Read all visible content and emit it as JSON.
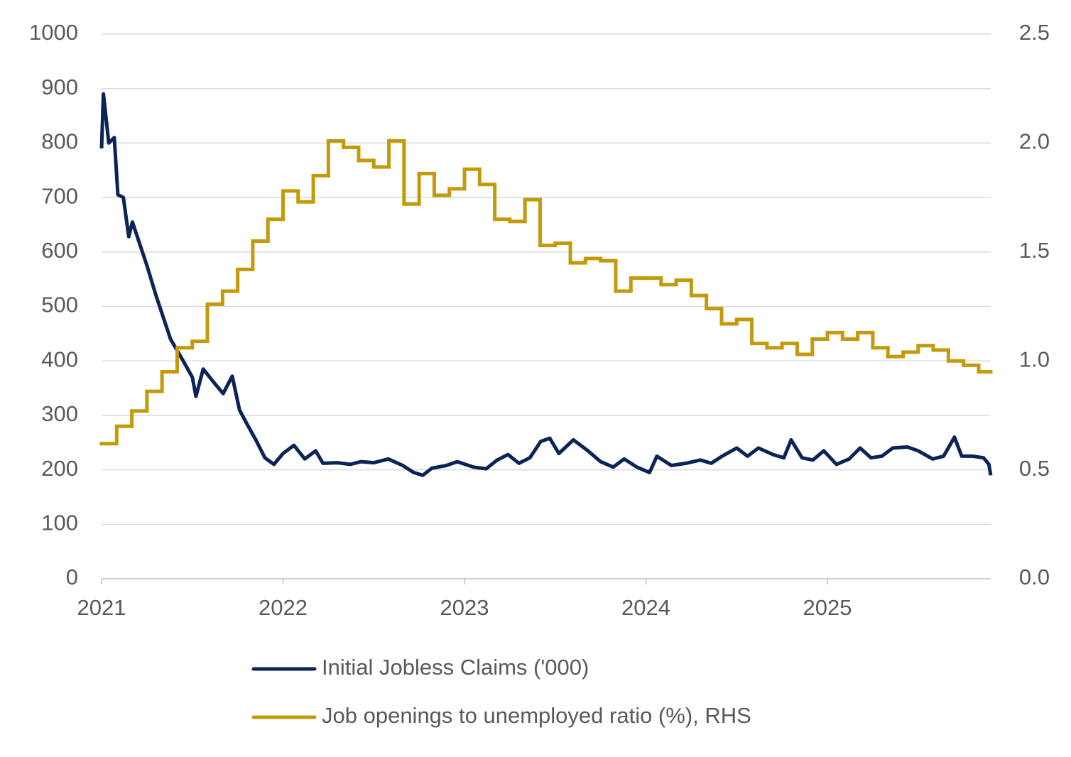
{
  "chart_data": {
    "type": "line",
    "xlim": [
      2021,
      2025.9
    ],
    "xticks": [
      2021,
      2022,
      2023,
      2024,
      2025
    ],
    "ylim": [
      0,
      1000
    ],
    "yticks": [
      0,
      100,
      200,
      300,
      400,
      500,
      600,
      700,
      800,
      900,
      1000
    ],
    "y2lim": [
      0,
      2.5
    ],
    "y2ticks": [
      {
        "value": 0,
        "label": "0.0"
      },
      0.5,
      {
        "value": 1,
        "label": "1.0"
      },
      1.5,
      {
        "value": 2,
        "label": "2.0"
      },
      2.5
    ],
    "grid": true,
    "series": [
      {
        "name": "Initial Jobless Claims ('000)",
        "color": "#0c2356",
        "axis": "y",
        "x": [
          2021.0,
          2021.01,
          2021.04,
          2021.07,
          2021.09,
          2021.12,
          2021.15,
          2021.17,
          2021.25,
          2021.3,
          2021.38,
          2021.45,
          2021.5,
          2021.52,
          2021.56,
          2021.62,
          2021.67,
          2021.72,
          2021.76,
          2021.8,
          2021.85,
          2021.9,
          2021.95,
          2022.0,
          2022.06,
          2022.12,
          2022.18,
          2022.22,
          2022.3,
          2022.37,
          2022.43,
          2022.5,
          2022.58,
          2022.66,
          2022.72,
          2022.77,
          2022.82,
          2022.9,
          2022.96,
          2023.05,
          2023.12,
          2023.18,
          2023.24,
          2023.3,
          2023.36,
          2023.42,
          2023.47,
          2023.52,
          2023.6,
          2023.68,
          2023.75,
          2023.82,
          2023.88,
          2023.95,
          2024.02,
          2024.06,
          2024.14,
          2024.22,
          2024.3,
          2024.36,
          2024.42,
          2024.5,
          2024.56,
          2024.62,
          2024.7,
          2024.76,
          2024.8,
          2024.86,
          2024.92,
          2024.98,
          2025.05,
          2025.12,
          2025.18,
          2025.24,
          2025.3,
          2025.36,
          2025.44,
          2025.5,
          2025.58,
          2025.64,
          2025.7,
          2025.74,
          2025.8,
          2025.86,
          2025.89,
          2025.9
        ],
        "values": [
          790,
          890,
          800,
          810,
          705,
          700,
          628,
          655,
          575,
          520,
          440,
          400,
          370,
          335,
          385,
          360,
          340,
          372,
          310,
          285,
          255,
          222,
          210,
          230,
          245,
          220,
          235,
          212,
          213,
          210,
          215,
          213,
          220,
          208,
          195,
          190,
          203,
          208,
          215,
          205,
          202,
          218,
          228,
          212,
          222,
          252,
          258,
          230,
          255,
          235,
          215,
          205,
          220,
          205,
          195,
          225,
          208,
          212,
          218,
          212,
          225,
          240,
          225,
          240,
          228,
          222,
          255,
          222,
          218,
          235,
          210,
          220,
          240,
          222,
          225,
          240,
          242,
          235,
          220,
          225,
          260,
          225,
          225,
          222,
          210,
          190
        ]
      },
      {
        "name": "Job openings to unemployed ratio (%), RHS",
        "color": "#c39a0c",
        "axis": "y2",
        "x": [
          2021.0,
          2021.0833,
          2021.1667,
          2021.25,
          2021.3333,
          2021.4167,
          2021.5,
          2021.5833,
          2021.6667,
          2021.75,
          2021.8333,
          2021.9167,
          2022.0,
          2022.0833,
          2022.1667,
          2022.25,
          2022.3333,
          2022.4167,
          2022.5,
          2022.5833,
          2022.6667,
          2022.75,
          2022.8333,
          2022.9167,
          2023.0,
          2023.0833,
          2023.1667,
          2023.25,
          2023.3333,
          2023.4167,
          2023.5,
          2023.5833,
          2023.6667,
          2023.75,
          2023.8333,
          2023.9167,
          2024.0,
          2024.0833,
          2024.1667,
          2024.25,
          2024.3333,
          2024.4167,
          2024.5,
          2024.5833,
          2024.6667,
          2024.75,
          2024.8333,
          2024.9167,
          2025.0,
          2025.0833,
          2025.1667,
          2025.25,
          2025.3333,
          2025.4167,
          2025.5,
          2025.5833,
          2025.6667,
          2025.75,
          2025.8333
        ],
        "values": [
          0.62,
          0.7,
          0.77,
          0.86,
          0.95,
          1.06,
          1.09,
          1.26,
          1.32,
          1.42,
          1.55,
          1.65,
          1.78,
          1.73,
          1.85,
          2.01,
          1.98,
          1.92,
          1.89,
          2.01,
          1.72,
          1.86,
          1.76,
          1.79,
          1.88,
          1.81,
          1.65,
          1.64,
          1.74,
          1.53,
          1.54,
          1.45,
          1.47,
          1.46,
          1.32,
          1.38,
          1.38,
          1.35,
          1.37,
          1.3,
          1.24,
          1.17,
          1.19,
          1.08,
          1.06,
          1.08,
          1.03,
          1.1,
          1.13,
          1.1,
          1.13,
          1.06,
          1.02,
          1.04,
          1.07,
          1.05,
          1.0,
          0.98,
          0.95
        ]
      }
    ]
  }
}
